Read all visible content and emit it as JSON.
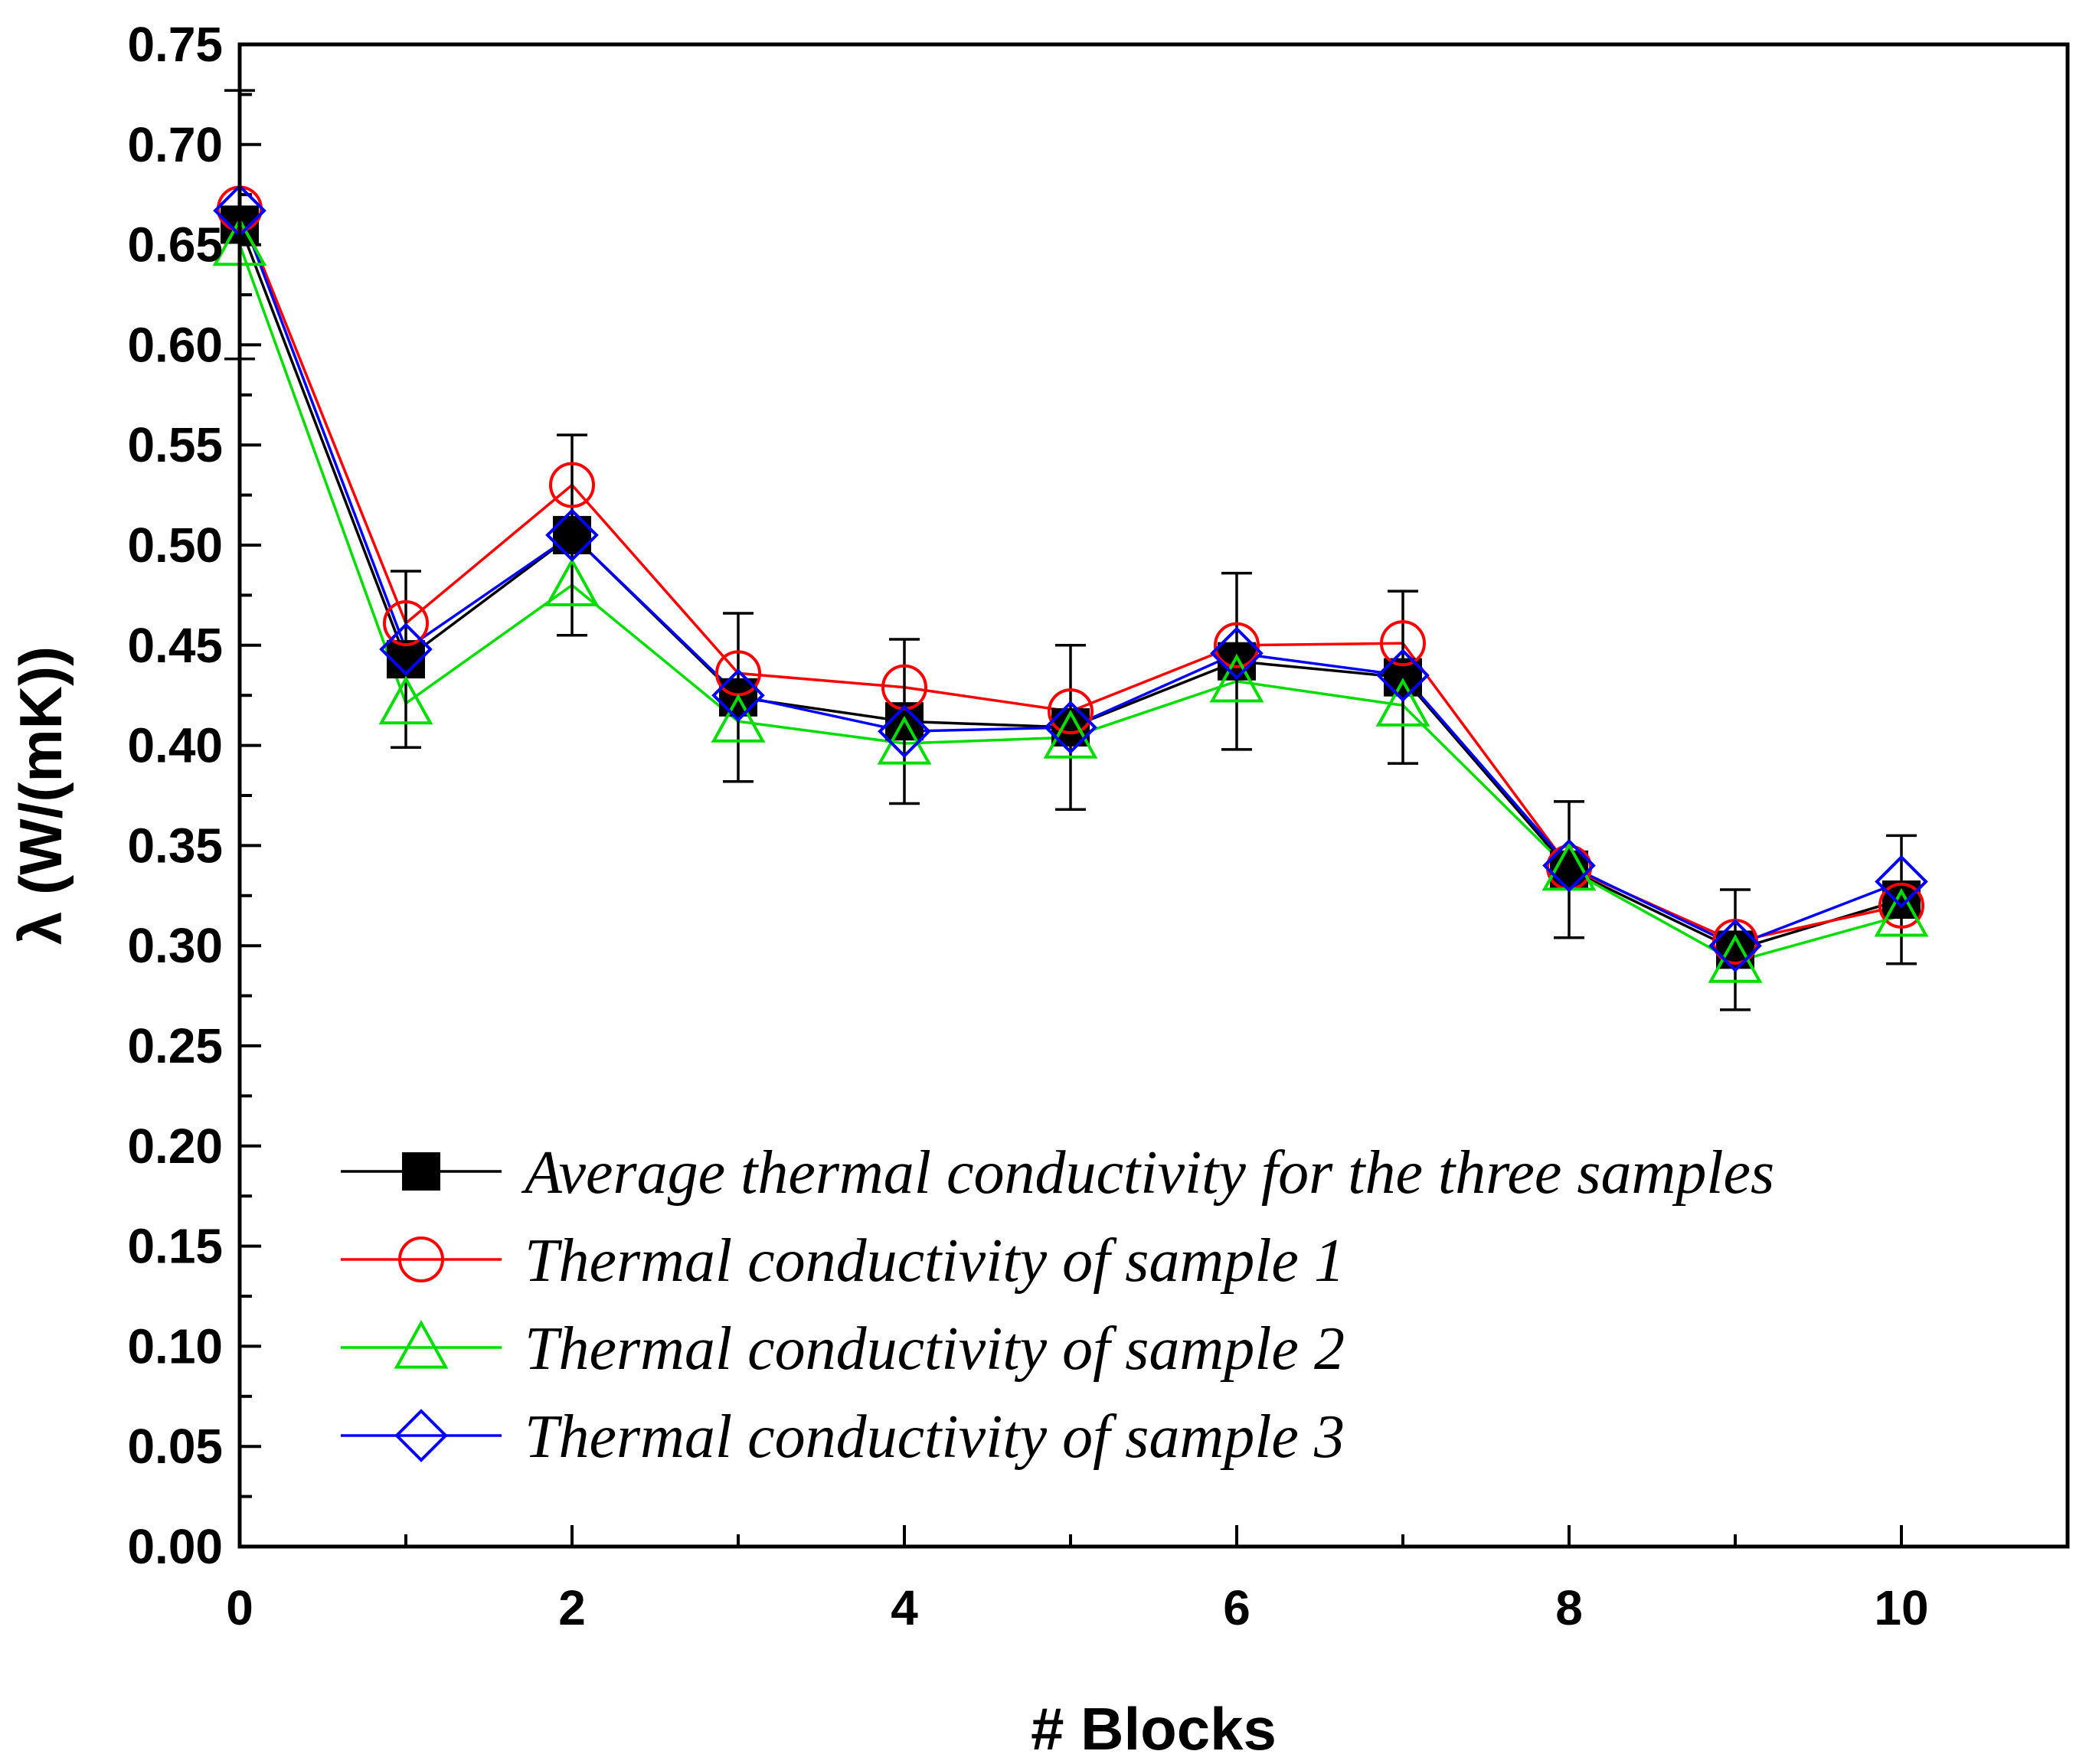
{
  "chart_data": {
    "type": "line",
    "title": "",
    "xlabel": "# Blocks",
    "ylabel": "λ (W/(mK))",
    "xlim": [
      0,
      11
    ],
    "ylim": [
      0,
      0.75
    ],
    "x_ticks": [
      0,
      2,
      4,
      6,
      8,
      10
    ],
    "y_ticks": [
      0.0,
      0.05,
      0.1,
      0.15,
      0.2,
      0.25,
      0.3,
      0.35,
      0.4,
      0.45,
      0.5,
      0.55,
      0.6,
      0.65,
      0.7,
      0.75
    ],
    "legend_position": "bottom-center",
    "x": [
      0,
      1,
      2,
      3,
      4,
      5,
      6,
      7,
      8,
      9,
      10
    ],
    "series": [
      {
        "name": "Average thermal conductivity for the three samples",
        "color": "#000000",
        "marker": "filled-square",
        "values": [
          0.66,
          0.443,
          0.505,
          0.424,
          0.412,
          0.409,
          0.442,
          0.434,
          0.338,
          0.298,
          0.323
        ],
        "error": [
          0.067,
          0.044,
          0.05,
          0.042,
          0.041,
          0.041,
          0.044,
          0.043,
          0.034,
          0.03,
          0.032
        ]
      },
      {
        "name": "Thermal conductivity of sample 1",
        "color": "#ff0000",
        "marker": "open-circle",
        "values": [
          0.668,
          0.461,
          0.53,
          0.436,
          0.429,
          0.417,
          0.45,
          0.451,
          0.339,
          0.302,
          0.32
        ]
      },
      {
        "name": "Thermal conductivity of sample 2",
        "color": "#00dd00",
        "marker": "open-triangle",
        "values": [
          0.65,
          0.421,
          0.48,
          0.412,
          0.401,
          0.404,
          0.432,
          0.42,
          0.338,
          0.292,
          0.315
        ]
      },
      {
        "name": "Thermal conductivity of sample 3",
        "color": "#0000ff",
        "marker": "open-diamond",
        "values": [
          0.667,
          0.448,
          0.505,
          0.425,
          0.407,
          0.409,
          0.446,
          0.435,
          0.34,
          0.3,
          0.332
        ]
      }
    ]
  }
}
